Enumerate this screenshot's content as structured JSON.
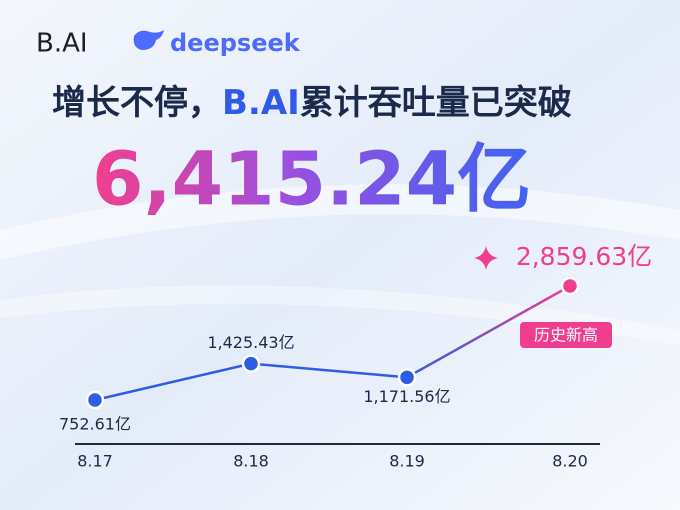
{
  "brand": "B.AI",
  "partner": "deepseek",
  "chart_data": {
    "type": "line",
    "title_part1": "增长不停，",
    "title_part2": "B.AI",
    "title_part3": "累计吞吐量已突破",
    "total": "6,415.24亿",
    "categories": [
      "8.17",
      "8.18",
      "8.19",
      "8.20"
    ],
    "values": [
      752.61,
      1425.43,
      1171.56,
      2859.63
    ],
    "value_labels": [
      "752.61亿",
      "1,425.43亿",
      "1,171.56亿",
      "2,859.63亿"
    ],
    "annotation": "历史新高",
    "color": "#2f5be8",
    "highlight_color": "#ef3e8f"
  }
}
